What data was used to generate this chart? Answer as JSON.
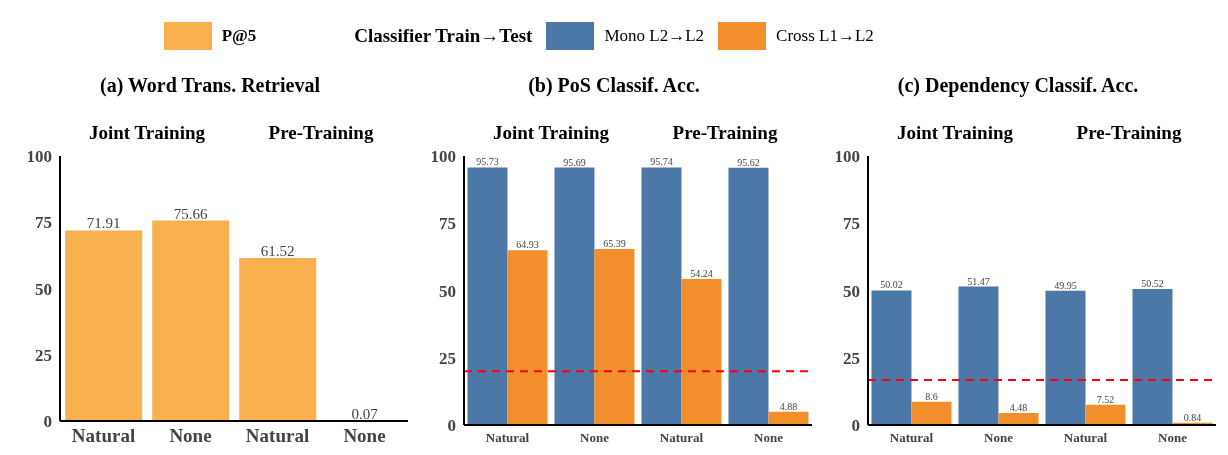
{
  "chart_data": [
    {
      "type": "bar",
      "title": "(a) Word Trans. Retrieval",
      "categories": [
        "Natural",
        "None",
        "Natural",
        "None"
      ],
      "series": [
        {
          "name": "P@5",
          "color": "#f9b04e",
          "values": [
            71.91,
            75.66,
            61.52,
            0.07
          ]
        }
      ],
      "ylim": [
        0,
        100
      ],
      "yticks": [
        0,
        25,
        50,
        75,
        100
      ],
      "data_labels": true,
      "legend": "top",
      "annotations": [
        "Joint Training",
        "Pre-Training"
      ]
    },
    {
      "type": "bar",
      "title": "(b) PoS Classif. Acc.",
      "legend_title": "Classifier Train→Test",
      "categories": [
        "Natural",
        "None",
        "Natural",
        "None"
      ],
      "series": [
        {
          "name": "Mono L2→L2",
          "color": "#4c78a8",
          "values": [
            95.73,
            95.69,
            95.74,
            95.62
          ]
        },
        {
          "name": "Cross L1→L2",
          "color": "#f28e2b",
          "values": [
            64.93,
            65.39,
            54.24,
            4.88
          ]
        }
      ],
      "ylim": [
        0,
        100
      ],
      "yticks": [
        0,
        25,
        50,
        75,
        100
      ],
      "data_labels": true,
      "legend": "top",
      "annotations": [
        "Joint Training",
        "Pre-Training"
      ],
      "ref_lines": [
        {
          "axis": "y",
          "value": 20,
          "color": "#ff0000",
          "line_style": "dashed"
        }
      ]
    },
    {
      "type": "bar",
      "title": "(c) Dependency Classif. Acc.",
      "categories": [
        "Natural",
        "None",
        "Natural",
        "None"
      ],
      "series": [
        {
          "color": "#4c78a8",
          "values": [
            50.02,
            51.47,
            49.95,
            50.52
          ]
        },
        {
          "color": "#f28e2b",
          "values": [
            8.6,
            4.48,
            7.52,
            0.84
          ]
        }
      ],
      "ylim": [
        0,
        100
      ],
      "yticks": [
        0,
        25,
        50,
        75,
        100
      ],
      "data_labels": true,
      "annotations": [
        "Joint Training",
        "Pre-Training"
      ],
      "ref_lines": [
        {
          "axis": "y",
          "value": 16.7,
          "color": "#ff0000",
          "line_style": "dashed"
        }
      ]
    }
  ]
}
